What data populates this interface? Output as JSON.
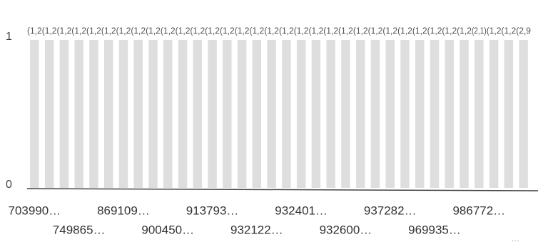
{
  "chart_data": {
    "type": "bar",
    "categories": [
      "703990…",
      null,
      null,
      "749865…",
      null,
      null,
      "869109…",
      null,
      null,
      "900450…",
      null,
      null,
      "913793…",
      null,
      null,
      "932122…",
      null,
      null,
      "932401…",
      null,
      null,
      "932600…",
      null,
      null,
      "937282…",
      null,
      null,
      "969935…",
      null,
      null,
      "986772…",
      null,
      null,
      null
    ],
    "values": [
      1,
      1,
      1,
      1,
      1,
      1,
      1,
      1,
      1,
      1,
      1,
      1,
      1,
      1,
      1,
      1,
      1,
      1,
      1,
      1,
      1,
      1,
      1,
      1,
      1,
      1,
      1,
      1,
      1,
      1,
      1,
      1,
      1,
      1
    ],
    "bar_labels": [
      "(1,2",
      "(1,2",
      "(1,2",
      "(1,2",
      "(1,2",
      "(1,2",
      "(1,2",
      "(1,2",
      "(1,2",
      "(1,2",
      "(1,2",
      "(1,2",
      "(1,2",
      "(1,2",
      "(1,2",
      "(1,2",
      "(1,2",
      "(1,2",
      "(1,2",
      "(1,2",
      "(1,2",
      "(1,2",
      "(1,2",
      "(1,2",
      "(1,2",
      "(1,2",
      "(1,2",
      "(1,2",
      "(1,2",
      "(1,2",
      "(2,1)",
      "(1,2",
      "(1,2",
      "(2,9"
    ],
    "color": "#dedede",
    "ylim": [
      0,
      1
    ],
    "yticks": [
      0,
      1
    ],
    "more_indicator": "…"
  }
}
